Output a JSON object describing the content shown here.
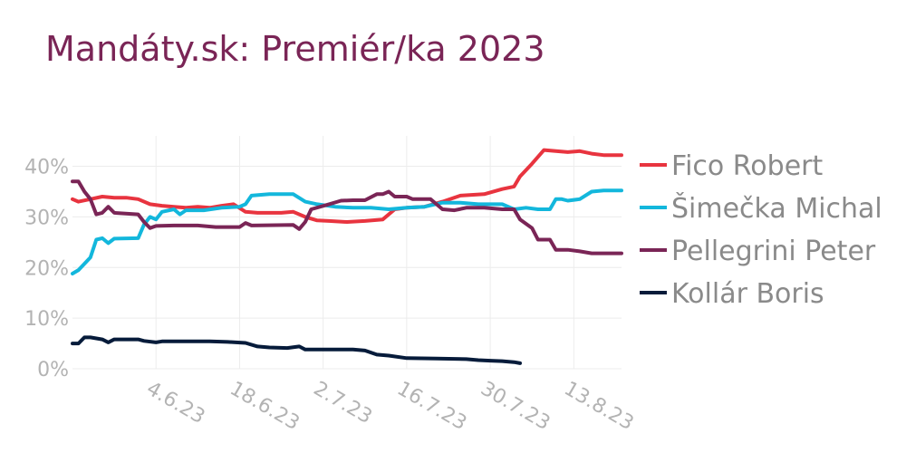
{
  "title": "Mandáty.sk: Premiér/ka 2023",
  "chart_data": {
    "type": "line",
    "title": "Mandáty.sk: Premiér/ka 2023",
    "xlabel": "",
    "ylabel": "",
    "x_range": [
      "2023-05-21",
      "2023-08-21"
    ],
    "ylim": [
      0,
      46
    ],
    "grid": true,
    "legend_position": "right",
    "yticks": [
      {
        "value": 0,
        "label": "0%"
      },
      {
        "value": 10,
        "label": "10%"
      },
      {
        "value": 20,
        "label": "20%"
      },
      {
        "value": 30,
        "label": "30%"
      },
      {
        "value": 40,
        "label": "40%"
      }
    ],
    "xticks": [
      {
        "date": "2023-06-04",
        "label": "4.6.23"
      },
      {
        "date": "2023-06-18",
        "label": "18.6.23"
      },
      {
        "date": "2023-07-02",
        "label": "2.7.23"
      },
      {
        "date": "2023-07-16",
        "label": "16.7.23"
      },
      {
        "date": "2023-07-30",
        "label": "30.7.23"
      },
      {
        "date": "2023-08-13",
        "label": "13.8.23"
      }
    ],
    "series": [
      {
        "name": "Fico Robert",
        "color": "#e8343f",
        "points": [
          [
            "2023-05-21",
            33.5
          ],
          [
            "2023-05-22",
            33.0
          ],
          [
            "2023-05-24",
            33.5
          ],
          [
            "2023-05-26",
            34.0
          ],
          [
            "2023-05-28",
            33.8
          ],
          [
            "2023-05-30",
            33.8
          ],
          [
            "2023-06-01",
            33.5
          ],
          [
            "2023-06-03",
            32.5
          ],
          [
            "2023-06-05",
            32.2
          ],
          [
            "2023-06-07",
            32.0
          ],
          [
            "2023-06-09",
            31.8
          ],
          [
            "2023-06-11",
            32.0
          ],
          [
            "2023-06-13",
            31.8
          ],
          [
            "2023-06-15",
            32.2
          ],
          [
            "2023-06-17",
            32.5
          ],
          [
            "2023-06-19",
            31.0
          ],
          [
            "2023-06-21",
            30.8
          ],
          [
            "2023-06-23",
            30.8
          ],
          [
            "2023-06-25",
            30.8
          ],
          [
            "2023-06-27",
            31.0
          ],
          [
            "2023-06-29",
            30.0
          ],
          [
            "2023-07-01",
            29.3
          ],
          [
            "2023-07-03",
            29.2
          ],
          [
            "2023-07-06",
            29.0
          ],
          [
            "2023-07-09",
            29.2
          ],
          [
            "2023-07-12",
            29.5
          ],
          [
            "2023-07-14",
            31.5
          ],
          [
            "2023-07-16",
            31.8
          ],
          [
            "2023-07-19",
            32.0
          ],
          [
            "2023-07-22",
            33.0
          ],
          [
            "2023-07-25",
            34.2
          ],
          [
            "2023-07-29",
            34.5
          ],
          [
            "2023-08-01",
            35.5
          ],
          [
            "2023-08-03",
            36.0
          ],
          [
            "2023-08-04",
            38.0
          ],
          [
            "2023-08-06",
            40.5
          ],
          [
            "2023-08-08",
            43.2
          ],
          [
            "2023-08-10",
            43.0
          ],
          [
            "2023-08-12",
            42.8
          ],
          [
            "2023-08-14",
            43.0
          ],
          [
            "2023-08-16",
            42.5
          ],
          [
            "2023-08-18",
            42.2
          ],
          [
            "2023-08-21",
            42.2
          ]
        ]
      },
      {
        "name": "Šimečka Michal",
        "color": "#13b7dc",
        "points": [
          [
            "2023-05-21",
            18.8
          ],
          [
            "2023-05-22",
            19.5
          ],
          [
            "2023-05-24",
            22.0
          ],
          [
            "2023-05-25",
            25.5
          ],
          [
            "2023-05-26",
            25.8
          ],
          [
            "2023-05-27",
            24.8
          ],
          [
            "2023-05-28",
            25.7
          ],
          [
            "2023-06-01",
            25.8
          ],
          [
            "2023-06-02",
            28.5
          ],
          [
            "2023-06-03",
            30.0
          ],
          [
            "2023-06-04",
            29.5
          ],
          [
            "2023-06-05",
            31.0
          ],
          [
            "2023-06-07",
            31.5
          ],
          [
            "2023-06-08",
            30.5
          ],
          [
            "2023-06-09",
            31.3
          ],
          [
            "2023-06-12",
            31.3
          ],
          [
            "2023-06-15",
            31.8
          ],
          [
            "2023-06-18",
            32.0
          ],
          [
            "2023-06-19",
            32.5
          ],
          [
            "2023-06-20",
            34.2
          ],
          [
            "2023-06-23",
            34.5
          ],
          [
            "2023-06-27",
            34.5
          ],
          [
            "2023-06-29",
            33.0
          ],
          [
            "2023-07-01",
            32.5
          ],
          [
            "2023-07-04",
            32.0
          ],
          [
            "2023-07-07",
            31.8
          ],
          [
            "2023-07-10",
            31.8
          ],
          [
            "2023-07-13",
            31.5
          ],
          [
            "2023-07-16",
            31.8
          ],
          [
            "2023-07-19",
            32.0
          ],
          [
            "2023-07-22",
            32.8
          ],
          [
            "2023-07-25",
            32.8
          ],
          [
            "2023-07-28",
            32.5
          ],
          [
            "2023-08-01",
            32.5
          ],
          [
            "2023-08-03",
            31.5
          ],
          [
            "2023-08-05",
            31.8
          ],
          [
            "2023-08-07",
            31.5
          ],
          [
            "2023-08-09",
            31.5
          ],
          [
            "2023-08-10",
            33.5
          ],
          [
            "2023-08-11",
            33.5
          ],
          [
            "2023-08-12",
            33.2
          ],
          [
            "2023-08-14",
            33.5
          ],
          [
            "2023-08-16",
            35.0
          ],
          [
            "2023-08-18",
            35.2
          ],
          [
            "2023-08-21",
            35.2
          ]
        ]
      },
      {
        "name": "Pellegrini Peter",
        "color": "#7a2556",
        "points": [
          [
            "2023-05-21",
            37.0
          ],
          [
            "2023-05-22",
            37.0
          ],
          [
            "2023-05-23",
            35.0
          ],
          [
            "2023-05-24",
            33.5
          ],
          [
            "2023-05-25",
            30.5
          ],
          [
            "2023-05-26",
            30.8
          ],
          [
            "2023-05-27",
            32.0
          ],
          [
            "2023-05-28",
            30.8
          ],
          [
            "2023-06-01",
            30.5
          ],
          [
            "2023-06-02",
            29.0
          ],
          [
            "2023-06-03",
            27.8
          ],
          [
            "2023-06-04",
            28.2
          ],
          [
            "2023-06-07",
            28.3
          ],
          [
            "2023-06-11",
            28.3
          ],
          [
            "2023-06-14",
            28.0
          ],
          [
            "2023-06-18",
            28.0
          ],
          [
            "2023-06-19",
            28.8
          ],
          [
            "2023-06-20",
            28.3
          ],
          [
            "2023-06-27",
            28.4
          ],
          [
            "2023-06-28",
            27.6
          ],
          [
            "2023-06-29",
            29.0
          ],
          [
            "2023-06-30",
            31.5
          ],
          [
            "2023-07-03",
            32.5
          ],
          [
            "2023-07-05",
            33.2
          ],
          [
            "2023-07-07",
            33.3
          ],
          [
            "2023-07-09",
            33.3
          ],
          [
            "2023-07-11",
            34.5
          ],
          [
            "2023-07-12",
            34.5
          ],
          [
            "2023-07-13",
            35.0
          ],
          [
            "2023-07-14",
            34.0
          ],
          [
            "2023-07-16",
            34.0
          ],
          [
            "2023-07-17",
            33.5
          ],
          [
            "2023-07-20",
            33.5
          ],
          [
            "2023-07-21",
            32.5
          ],
          [
            "2023-07-22",
            31.5
          ],
          [
            "2023-07-24",
            31.3
          ],
          [
            "2023-07-26",
            31.8
          ],
          [
            "2023-07-29",
            31.8
          ],
          [
            "2023-08-01",
            31.5
          ],
          [
            "2023-08-03",
            31.5
          ],
          [
            "2023-08-04",
            29.5
          ],
          [
            "2023-08-06",
            27.8
          ],
          [
            "2023-08-07",
            25.5
          ],
          [
            "2023-08-09",
            25.5
          ],
          [
            "2023-08-10",
            23.5
          ],
          [
            "2023-08-12",
            23.5
          ],
          [
            "2023-08-14",
            23.2
          ],
          [
            "2023-08-16",
            22.8
          ],
          [
            "2023-08-21",
            22.8
          ]
        ]
      },
      {
        "name": "Kollár Boris",
        "color": "#061b3a",
        "points": [
          [
            "2023-05-21",
            5.0
          ],
          [
            "2023-05-22",
            5.0
          ],
          [
            "2023-05-23",
            6.2
          ],
          [
            "2023-05-24",
            6.2
          ],
          [
            "2023-05-26",
            5.8
          ],
          [
            "2023-05-27",
            5.2
          ],
          [
            "2023-05-28",
            5.8
          ],
          [
            "2023-06-01",
            5.8
          ],
          [
            "2023-06-02",
            5.5
          ],
          [
            "2023-06-04",
            5.2
          ],
          [
            "2023-06-05",
            5.4
          ],
          [
            "2023-06-10",
            5.4
          ],
          [
            "2023-06-13",
            5.4
          ],
          [
            "2023-06-16",
            5.3
          ],
          [
            "2023-06-19",
            5.1
          ],
          [
            "2023-06-21",
            4.4
          ],
          [
            "2023-06-23",
            4.2
          ],
          [
            "2023-06-26",
            4.1
          ],
          [
            "2023-06-28",
            4.4
          ],
          [
            "2023-06-29",
            3.8
          ],
          [
            "2023-07-03",
            3.8
          ],
          [
            "2023-07-07",
            3.8
          ],
          [
            "2023-07-09",
            3.6
          ],
          [
            "2023-07-11",
            2.8
          ],
          [
            "2023-07-13",
            2.6
          ],
          [
            "2023-07-16",
            2.1
          ],
          [
            "2023-07-21",
            2.0
          ],
          [
            "2023-07-26",
            1.9
          ],
          [
            "2023-07-28",
            1.7
          ],
          [
            "2023-07-30",
            1.6
          ],
          [
            "2023-08-01",
            1.5
          ],
          [
            "2023-08-03",
            1.3
          ],
          [
            "2023-08-04",
            1.1
          ]
        ]
      }
    ]
  }
}
